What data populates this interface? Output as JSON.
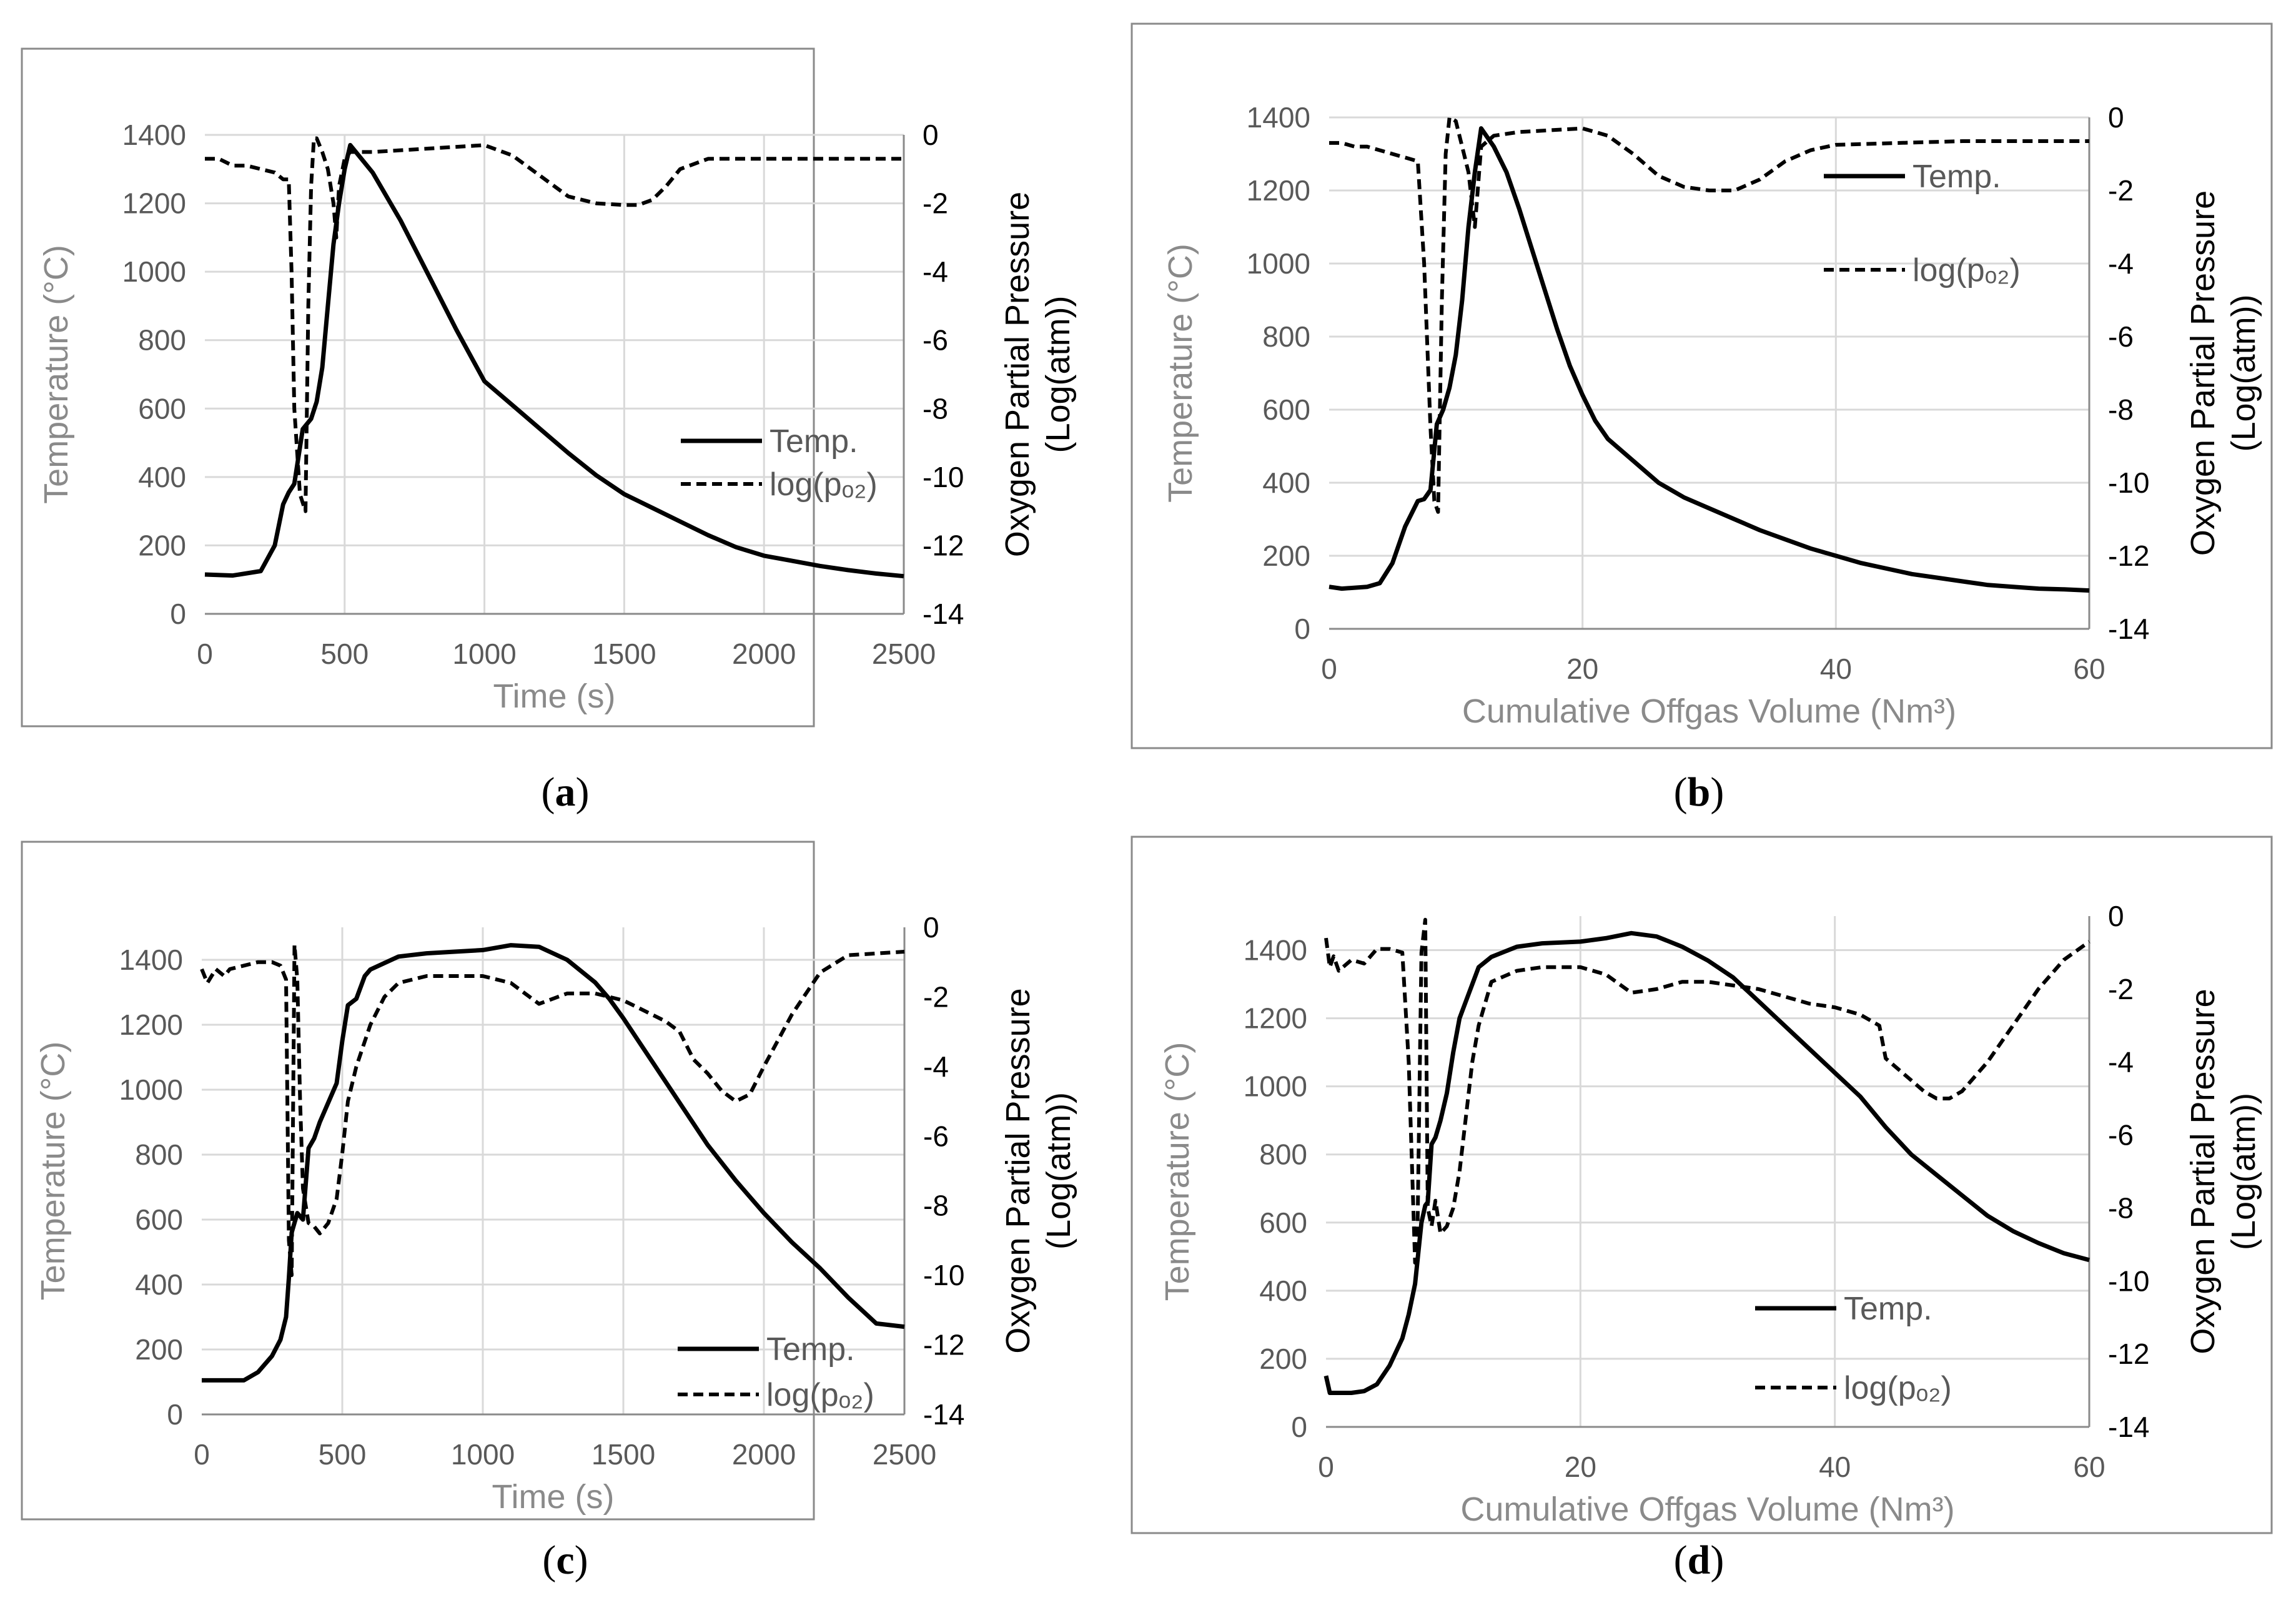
{
  "chart_data": [
    {
      "id": "a",
      "type": "line",
      "caption_letter": "a",
      "xlabel": "Time (s)",
      "xlim": [
        0,
        2500
      ],
      "xticks": [
        "0",
        "500",
        "1000",
        "1500",
        "2000",
        "2500"
      ],
      "ylabel": "Temperature (°C)",
      "ylim": [
        0,
        1400
      ],
      "yticks": [
        "0",
        "200",
        "400",
        "600",
        "800",
        "1000",
        "1200",
        "1400"
      ],
      "y2label_line1": "Oxygen Partial Pressure",
      "y2label_line2": "(Log(atm))",
      "y2lim": [
        -14,
        0
      ],
      "y2ticks": [
        "0",
        "-2",
        "-4",
        "-6",
        "-8",
        "-10",
        "-12",
        "-14"
      ],
      "legend": {
        "temp": "Temp.",
        "po2": "log(pₒ₂)",
        "position": "middle-right"
      },
      "series": [
        {
          "name": "Temp.",
          "axis": "left",
          "style": "solid",
          "x": [
            0,
            100,
            200,
            250,
            280,
            300,
            320,
            350,
            380,
            400,
            420,
            440,
            460,
            480,
            500,
            520,
            600,
            700,
            800,
            900,
            1000,
            1100,
            1200,
            1300,
            1400,
            1500,
            1600,
            1700,
            1800,
            1900,
            2000,
            2100,
            2200,
            2300,
            2400,
            2500
          ],
          "y": [
            115,
            112,
            125,
            200,
            320,
            355,
            380,
            540,
            570,
            620,
            720,
            900,
            1080,
            1200,
            1300,
            1370,
            1290,
            1150,
            990,
            830,
            680,
            610,
            540,
            470,
            405,
            350,
            310,
            270,
            230,
            195,
            170,
            155,
            140,
            128,
            118,
            110
          ]
        },
        {
          "name": "log(po2)",
          "axis": "right",
          "style": "dashed",
          "x": [
            0,
            50,
            100,
            150,
            200,
            250,
            280,
            300,
            310,
            320,
            340,
            360,
            370,
            380,
            390,
            400,
            420,
            440,
            460,
            470,
            480,
            500,
            520,
            600,
            800,
            1000,
            1100,
            1200,
            1300,
            1400,
            1500,
            1550,
            1600,
            1650,
            1700,
            1800,
            2000,
            2500
          ],
          "y": [
            -0.7,
            -0.7,
            -0.9,
            -0.9,
            -1.0,
            -1.1,
            -1.3,
            -1.3,
            -4.0,
            -8.0,
            -10.5,
            -11.0,
            -5.0,
            -1.5,
            -0.1,
            -0.1,
            -0.5,
            -1.0,
            -2.0,
            -3.0,
            -1.5,
            -0.7,
            -0.5,
            -0.5,
            -0.4,
            -0.3,
            -0.6,
            -1.2,
            -1.8,
            -2.0,
            -2.05,
            -2.05,
            -1.9,
            -1.5,
            -1.0,
            -0.7,
            -0.7,
            -0.7
          ]
        }
      ]
    },
    {
      "id": "b",
      "type": "line",
      "caption_letter": "b",
      "xlabel": "Cumulative Offgas Volume (Nm³)",
      "xlim": [
        0,
        60
      ],
      "xticks": [
        "0",
        "20",
        "40",
        "60"
      ],
      "ylabel": "Temperature (°C)",
      "ylim": [
        0,
        1400
      ],
      "yticks": [
        "0",
        "200",
        "400",
        "600",
        "800",
        "1000",
        "1200",
        "1400"
      ],
      "y2label_line1": "Oxygen Partial Pressure",
      "y2label_line2": "(Log(atm))",
      "y2lim": [
        -14,
        0
      ],
      "y2ticks": [
        "0",
        "-2",
        "-4",
        "-6",
        "-8",
        "-10",
        "-12",
        "-14"
      ],
      "legend": {
        "temp": "Temp.",
        "po2": "log(pₒ₂)",
        "position": "top-right"
      },
      "series": [
        {
          "name": "Temp.",
          "axis": "left",
          "style": "solid",
          "x": [
            0,
            1,
            3,
            4,
            5,
            6,
            7,
            7.5,
            8,
            8.5,
            9,
            9.5,
            10,
            10.5,
            11,
            11.5,
            12,
            13,
            14,
            15,
            16,
            17,
            18,
            19,
            20,
            21,
            22,
            24,
            26,
            28,
            30,
            32,
            34,
            36,
            38,
            40,
            42,
            44,
            46,
            48,
            50,
            52,
            54,
            56,
            58,
            60
          ],
          "y": [
            115,
            110,
            115,
            125,
            180,
            280,
            350,
            355,
            380,
            560,
            600,
            660,
            750,
            900,
            1100,
            1250,
            1370,
            1320,
            1250,
            1150,
            1040,
            930,
            820,
            720,
            640,
            570,
            520,
            460,
            400,
            360,
            330,
            300,
            270,
            245,
            220,
            200,
            180,
            165,
            150,
            140,
            130,
            120,
            115,
            110,
            108,
            105
          ]
        },
        {
          "name": "log(po2)",
          "axis": "right",
          "style": "dashed",
          "x": [
            0,
            1,
            2,
            3,
            4,
            5,
            6,
            7,
            7.5,
            8,
            8.3,
            8.6,
            8.9,
            9.2,
            9.5,
            10,
            10.5,
            11,
            11.5,
            12,
            13,
            15,
            20,
            22,
            24,
            26,
            28,
            30,
            32,
            34,
            36,
            38,
            40,
            45,
            50,
            60
          ],
          "y": [
            -0.7,
            -0.7,
            -0.8,
            -0.8,
            -0.9,
            -1.0,
            -1.1,
            -1.2,
            -4.0,
            -8.5,
            -10.5,
            -10.8,
            -5.0,
            -1.0,
            0.0,
            -0.1,
            -0.8,
            -1.5,
            -3.0,
            -0.8,
            -0.5,
            -0.4,
            -0.3,
            -0.5,
            -1.0,
            -1.6,
            -1.9,
            -2.0,
            -2.0,
            -1.7,
            -1.2,
            -0.9,
            -0.75,
            -0.7,
            -0.65,
            -0.65
          ]
        }
      ]
    },
    {
      "id": "c",
      "type": "line",
      "caption_letter": "c",
      "xlabel": "Time (s)",
      "xlim": [
        0,
        2500
      ],
      "xticks": [
        "0",
        "500",
        "1000",
        "1500",
        "2000",
        "2500"
      ],
      "ylabel": "Temperature (°C)",
      "ylim": [
        0,
        1500
      ],
      "yticks": [
        "0",
        "200",
        "400",
        "600",
        "800",
        "1000",
        "1200",
        "1400"
      ],
      "y2label_line1": "Oxygen Partial Pressure",
      "y2label_line2": "(Log(atm))",
      "y2lim": [
        -14,
        0
      ],
      "y2ticks": [
        "0",
        "-2",
        "-4",
        "-6",
        "-8",
        "-10",
        "-12",
        "-14"
      ],
      "legend": {
        "temp": "Temp.",
        "po2": "log(pₒ₂)",
        "position": "bottom-right"
      },
      "series": [
        {
          "name": "Temp.",
          "axis": "left",
          "style": "solid",
          "x": [
            0,
            100,
            150,
            200,
            250,
            280,
            300,
            310,
            320,
            340,
            360,
            380,
            400,
            420,
            450,
            480,
            500,
            520,
            550,
            580,
            600,
            650,
            700,
            800,
            900,
            1000,
            1100,
            1200,
            1300,
            1400,
            1450,
            1500,
            1600,
            1700,
            1800,
            1900,
            2000,
            2100,
            2200,
            2300,
            2400,
            2500
          ],
          "y": [
            105,
            105,
            105,
            130,
            180,
            230,
            300,
            420,
            560,
            620,
            600,
            820,
            850,
            900,
            960,
            1020,
            1150,
            1260,
            1280,
            1350,
            1370,
            1390,
            1410,
            1420,
            1425,
            1430,
            1445,
            1440,
            1400,
            1330,
            1280,
            1220,
            1090,
            960,
            830,
            720,
            620,
            530,
            450,
            360,
            280,
            270
          ]
        },
        {
          "name": "log(po2)",
          "axis": "right",
          "style": "dashed",
          "x": [
            0,
            20,
            50,
            80,
            100,
            150,
            200,
            250,
            280,
            300,
            310,
            320,
            330,
            340,
            350,
            360,
            380,
            400,
            420,
            450,
            480,
            500,
            520,
            550,
            600,
            650,
            700,
            800,
            1000,
            1100,
            1200,
            1300,
            1400,
            1500,
            1550,
            1600,
            1650,
            1700,
            1750,
            1800,
            1850,
            1900,
            1950,
            2000,
            2100,
            2200,
            2300,
            2500
          ],
          "y": [
            -1.2,
            -1.6,
            -1.2,
            -1.4,
            -1.2,
            -1.1,
            -1.0,
            -1.0,
            -1.1,
            -1.5,
            -9.0,
            -10.0,
            -0.5,
            -1.5,
            -5.0,
            -7.5,
            -8.5,
            -8.6,
            -8.8,
            -8.5,
            -7.8,
            -6.5,
            -5.0,
            -4.0,
            -2.8,
            -2.0,
            -1.6,
            -1.4,
            -1.4,
            -1.6,
            -2.2,
            -1.9,
            -1.9,
            -2.1,
            -2.3,
            -2.5,
            -2.7,
            -3.0,
            -3.8,
            -4.2,
            -4.7,
            -5.0,
            -4.8,
            -4.0,
            -2.5,
            -1.3,
            -0.8,
            -0.7
          ]
        }
      ]
    },
    {
      "id": "d",
      "type": "line",
      "caption_letter": "d",
      "xlabel": "Cumulative Offgas Volume (Nm³)",
      "xlim": [
        0,
        60
      ],
      "xticks": [
        "0",
        "20",
        "40",
        "60"
      ],
      "ylabel": "Temperature (°C)",
      "ylim": [
        0,
        1500
      ],
      "yticks": [
        "0",
        "200",
        "400",
        "600",
        "800",
        "1000",
        "1200",
        "1400"
      ],
      "y2label_line1": "Oxygen Partial Pressure",
      "y2label_line2": "(Log(atm))",
      "y2lim": [
        -14,
        0
      ],
      "y2ticks": [
        "0",
        "-2",
        "-4",
        "-6",
        "-8",
        "-10",
        "-12",
        "-14"
      ],
      "legend": {
        "temp": "Temp.",
        "po2": "log(pₒ₂)",
        "position": "bottom-right"
      },
      "series": [
        {
          "name": "Temp.",
          "axis": "left",
          "style": "solid",
          "x": [
            0,
            0.3,
            1,
            2,
            3,
            4,
            5,
            6,
            6.5,
            7,
            7.5,
            7.8,
            8,
            8.3,
            8.6,
            9,
            9.5,
            10,
            10.5,
            11,
            11.5,
            12,
            13,
            15,
            17,
            20,
            22,
            24,
            26,
            28,
            30,
            32,
            34,
            36,
            38,
            40,
            42,
            44,
            46,
            48,
            50,
            52,
            54,
            56,
            58,
            60
          ],
          "y": [
            150,
            100,
            100,
            100,
            105,
            125,
            180,
            260,
            330,
            420,
            600,
            650,
            660,
            830,
            850,
            900,
            980,
            1100,
            1200,
            1250,
            1300,
            1350,
            1380,
            1410,
            1420,
            1425,
            1435,
            1450,
            1440,
            1410,
            1370,
            1320,
            1250,
            1180,
            1110,
            1040,
            970,
            880,
            800,
            740,
            680,
            620,
            575,
            540,
            510,
            490
          ]
        },
        {
          "name": "log(po2)",
          "axis": "right",
          "style": "dashed",
          "x": [
            0,
            0.3,
            0.6,
            1,
            2,
            3,
            4,
            5,
            6,
            6.5,
            7,
            7.2,
            7.5,
            7.8,
            8,
            8.3,
            8.6,
            9,
            9.5,
            10,
            10.5,
            11,
            11.5,
            12,
            13,
            15,
            17,
            20,
            22,
            24,
            26,
            28,
            30,
            32,
            34,
            36,
            38,
            40,
            42,
            43.5,
            44,
            45,
            46,
            47,
            48,
            49,
            50,
            52,
            54,
            56,
            58,
            60
          ],
          "y": [
            -0.6,
            -1.4,
            -1.1,
            -1.5,
            -1.2,
            -1.3,
            -0.9,
            -0.9,
            -1.0,
            -4.0,
            -9.5,
            -8.5,
            -1.0,
            -0.1,
            -8.0,
            -8.5,
            -7.8,
            -8.7,
            -8.5,
            -8.0,
            -7.0,
            -5.5,
            -4.0,
            -3.0,
            -1.8,
            -1.5,
            -1.4,
            -1.4,
            -1.6,
            -2.1,
            -2.0,
            -1.8,
            -1.8,
            -1.9,
            -2.0,
            -2.2,
            -2.4,
            -2.5,
            -2.7,
            -3.0,
            -3.9,
            -4.2,
            -4.5,
            -4.8,
            -5.0,
            -5.0,
            -4.8,
            -4.0,
            -3.0,
            -2.0,
            -1.2,
            -0.7
          ]
        }
      ]
    }
  ]
}
